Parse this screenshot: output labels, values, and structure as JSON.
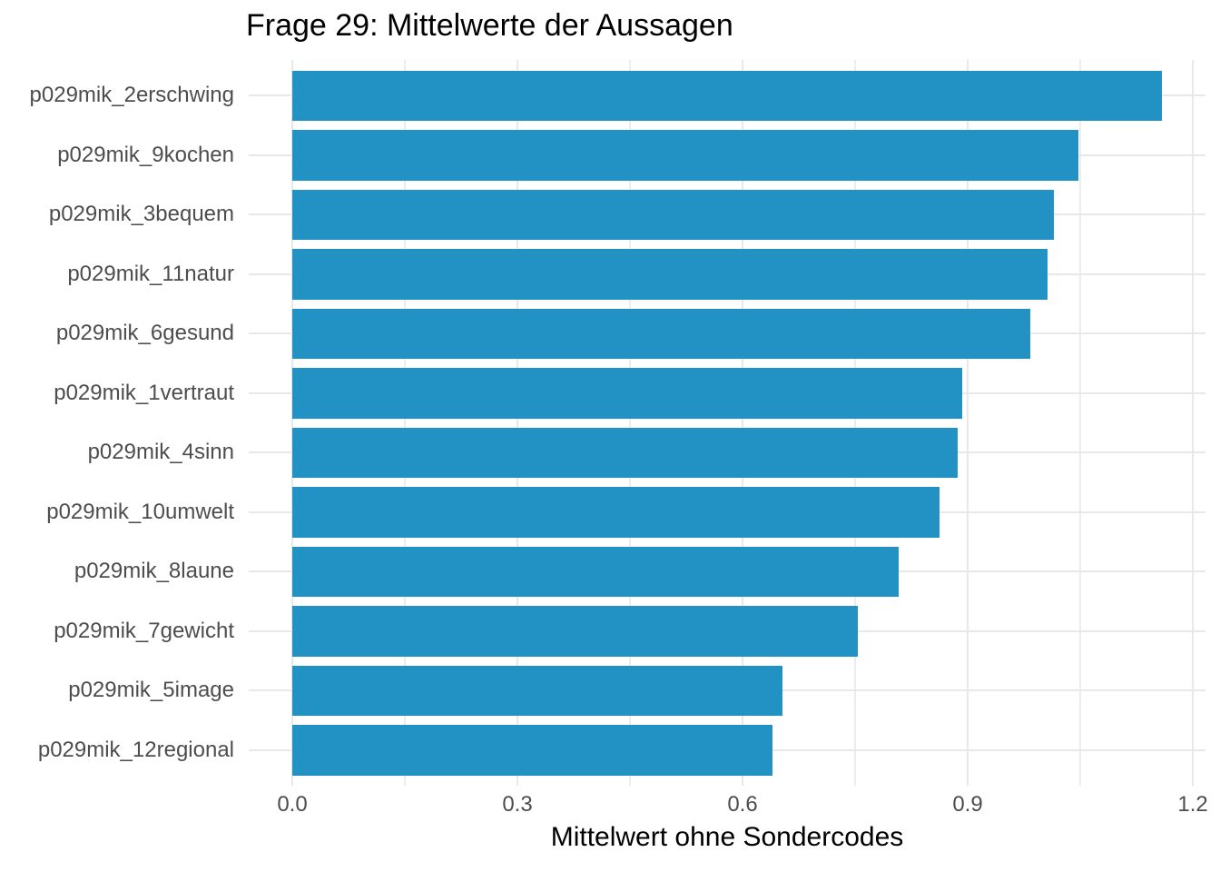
{
  "chart_data": {
    "type": "bar",
    "orientation": "horizontal",
    "title": "Frage 29: Mittelwerte der Aussagen",
    "xlabel": "Mittelwert ohne Sondercodes",
    "ylabel": "",
    "categories": [
      "p029mik_2erschwing",
      "p029mik_9kochen",
      "p029mik_3bequem",
      "p029mik_11natur",
      "p029mik_6gesund",
      "p029mik_1vertraut",
      "p029mik_4sinn",
      "p029mik_10umwelt",
      "p029mik_8laune",
      "p029mik_7gewicht",
      "p029mik_5image",
      "p029mik_12regional"
    ],
    "values": [
      1.159,
      1.047,
      1.015,
      1.006,
      0.983,
      0.893,
      0.887,
      0.862,
      0.808,
      0.754,
      0.653,
      0.64
    ],
    "xlim": [
      0,
      1.2
    ],
    "x_ticks": [
      0,
      0.3,
      0.6,
      0.9,
      1.2
    ],
    "x_tick_labels": [
      "0.0",
      "0.3",
      "0.6",
      "0.9",
      "1.2"
    ],
    "x_minor_ticks": [
      0.15,
      0.45,
      0.75,
      1.05
    ],
    "grid": true,
    "legend": false,
    "colors": {
      "bar_fill": "#2292C4",
      "grid_major": "#E8E8E8",
      "grid_minor": "#EDEDED",
      "axis_text": "#4D4D4D",
      "title_text": "#000000",
      "background": "#FFFFFF"
    }
  }
}
